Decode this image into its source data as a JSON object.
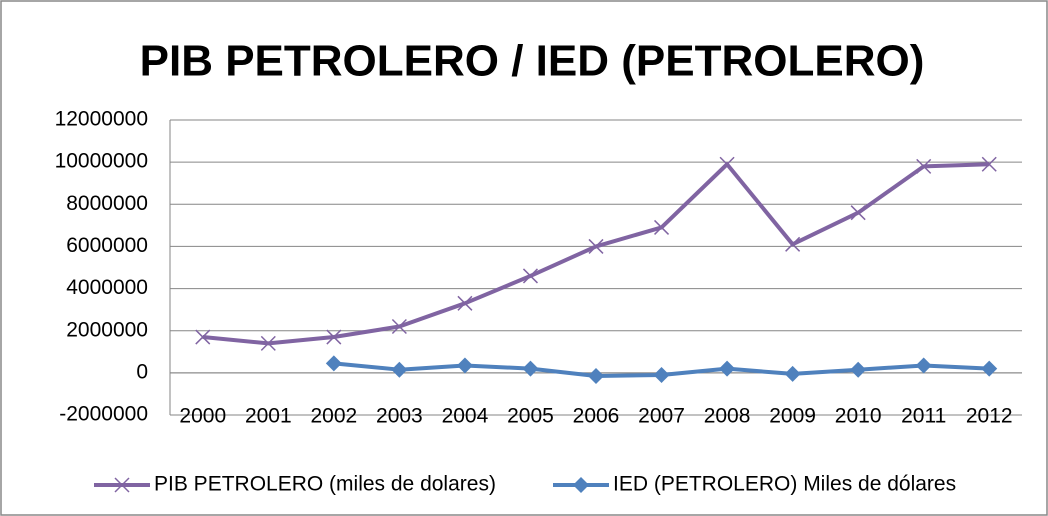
{
  "chart_data": {
    "type": "line",
    "title": "PIB PETROLERO / IED (PETROLERO)",
    "categories": [
      "2000",
      "2001",
      "2002",
      "2003",
      "2004",
      "2005",
      "2006",
      "2007",
      "2008",
      "2009",
      "2010",
      "2011",
      "2012"
    ],
    "series": [
      {
        "name": "PIB PETROLERO (miles de dolares)",
        "color": "#8064a2",
        "marker": "x",
        "values": [
          1700000,
          1400000,
          1700000,
          2200000,
          3300000,
          4600000,
          6000000,
          6900000,
          9900000,
          6100000,
          7600000,
          9800000,
          9900000
        ]
      },
      {
        "name": "IED (PETROLERO) Miles de dólares",
        "color": "#4f81bd",
        "marker": "diamond",
        "values": [
          null,
          null,
          450000,
          150000,
          350000,
          200000,
          -150000,
          -100000,
          200000,
          -50000,
          150000,
          350000,
          200000
        ]
      }
    ],
    "ylim": [
      -2000000,
      12000000
    ],
    "yticks": [
      -2000000,
      0,
      2000000,
      4000000,
      6000000,
      8000000,
      10000000,
      12000000
    ],
    "grid": true,
    "legend": "bottom"
  }
}
